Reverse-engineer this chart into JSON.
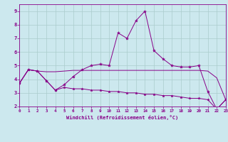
{
  "xlabel": "Windchill (Refroidissement éolien,°C)",
  "background_color": "#cce8ee",
  "line_color": "#880088",
  "grid_color": "#aacccc",
  "x": [
    0,
    1,
    2,
    3,
    4,
    5,
    6,
    7,
    8,
    9,
    10,
    11,
    12,
    13,
    14,
    15,
    16,
    17,
    18,
    19,
    20,
    21,
    22,
    23
  ],
  "line1": [
    3.7,
    4.7,
    4.6,
    3.9,
    3.2,
    3.6,
    4.2,
    4.7,
    5.0,
    5.1,
    5.0,
    7.4,
    7.0,
    8.3,
    9.0,
    6.1,
    5.5,
    5.0,
    4.9,
    4.9,
    5.0,
    3.1,
    1.8,
    2.5
  ],
  "line2": [
    3.7,
    4.7,
    4.6,
    4.55,
    4.55,
    4.6,
    4.65,
    4.65,
    4.65,
    4.65,
    4.65,
    4.65,
    4.65,
    4.65,
    4.65,
    4.65,
    4.65,
    4.65,
    4.65,
    4.65,
    4.65,
    4.6,
    4.1,
    2.5
  ],
  "line3": [
    3.7,
    4.7,
    4.6,
    3.9,
    3.2,
    3.4,
    3.3,
    3.3,
    3.2,
    3.2,
    3.1,
    3.1,
    3.0,
    3.0,
    2.9,
    2.9,
    2.8,
    2.8,
    2.7,
    2.6,
    2.6,
    2.5,
    1.8,
    2.5
  ],
  "ylim": [
    2.0,
    9.5
  ],
  "xlim": [
    0,
    23
  ],
  "yticks": [
    2,
    3,
    4,
    5,
    6,
    7,
    8,
    9
  ],
  "xticks": [
    0,
    1,
    2,
    3,
    4,
    5,
    6,
    7,
    8,
    9,
    10,
    11,
    12,
    13,
    14,
    15,
    16,
    17,
    18,
    19,
    20,
    21,
    22,
    23
  ]
}
